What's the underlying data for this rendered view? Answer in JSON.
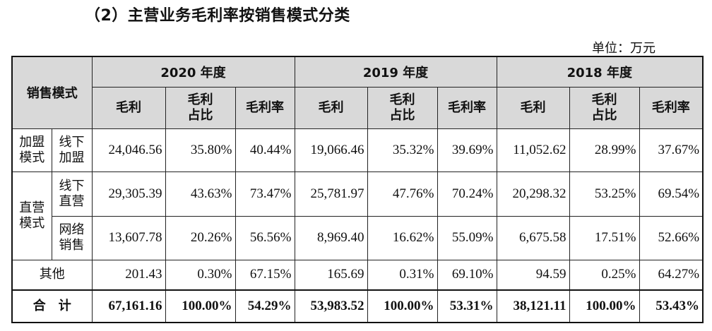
{
  "title": "（2）主营业务毛利率按销售模式分类",
  "unit": "单位：万元",
  "header": {
    "mode": "销售模式",
    "years": [
      "2020 年度",
      "2019 年度",
      "2018 年度"
    ],
    "cols": [
      "毛利",
      "毛利\n占比",
      "毛利率"
    ]
  },
  "rows": {
    "franchise": {
      "group": "加盟\n模式",
      "sub": "线下\n加盟",
      "values": [
        "24,046.56",
        "35.80%",
        "40.44%",
        "19,066.46",
        "35.32%",
        "39.69%",
        "11,052.62",
        "28.99%",
        "37.67%"
      ]
    },
    "direct_group": "直营\n模式",
    "direct_offline": {
      "sub": "线下\n直营",
      "values": [
        "29,305.39",
        "43.63%",
        "73.47%",
        "25,781.97",
        "47.76%",
        "70.24%",
        "20,298.32",
        "53.25%",
        "69.54%"
      ]
    },
    "direct_online": {
      "sub": "网络\n销售",
      "values": [
        "13,607.78",
        "20.26%",
        "56.56%",
        "8,969.40",
        "16.62%",
        "55.09%",
        "6,675.58",
        "17.51%",
        "52.66%"
      ]
    },
    "other": {
      "label": "其他",
      "values": [
        "201.43",
        "0.30%",
        "67.15%",
        "165.69",
        "0.31%",
        "69.10%",
        "94.59",
        "0.25%",
        "64.27%"
      ]
    },
    "total": {
      "label": "合　计",
      "values": [
        "67,161.16",
        "100.00%",
        "54.29%",
        "53,983.52",
        "100.00%",
        "53.31%",
        "38,121.11",
        "100.00%",
        "53.43%"
      ]
    }
  }
}
